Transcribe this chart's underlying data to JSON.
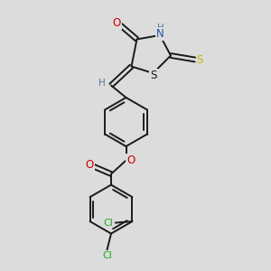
{
  "bg_color": "#dcdcdc",
  "bond_color": "#1a1a1a",
  "bond_width": 1.4,
  "atom_colors": {
    "O": "#cc0000",
    "N": "#2255aa",
    "S_thioxo": "#bbbb00",
    "S_ring": "#1a1a1a",
    "Cl": "#22aa22",
    "H": "#557799",
    "C": "#1a1a1a"
  },
  "font_size_atom": 8.5,
  "font_size_h": 7.5,
  "font_size_cl": 8.0
}
